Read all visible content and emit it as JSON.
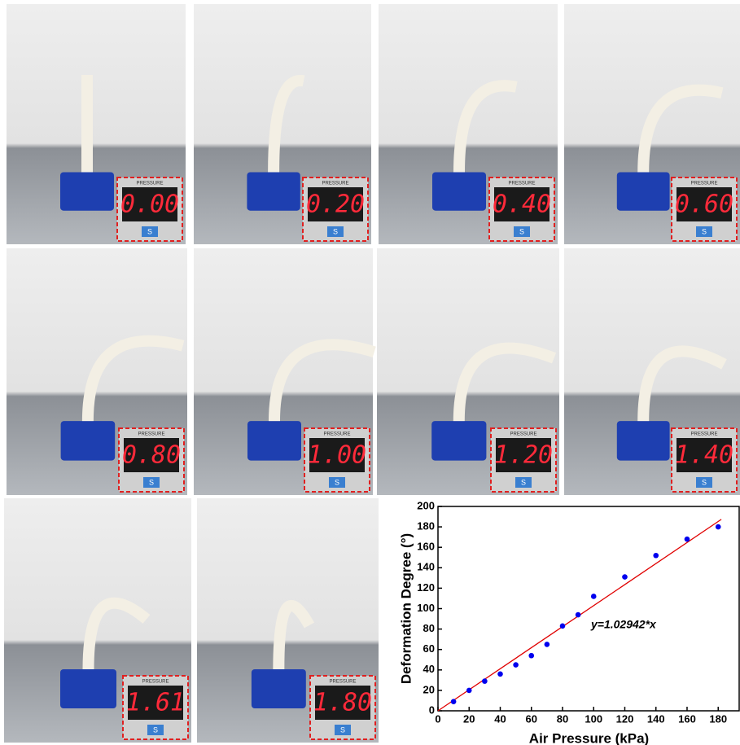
{
  "photos": {
    "readings": [
      "0.00",
      "0.20",
      "0.40",
      "0.60",
      "0.80",
      "1.00",
      "1.20",
      "1.40",
      "1.61",
      "1.80"
    ],
    "display_header": "PRESSURE",
    "button_label": "S"
  },
  "chart_data": {
    "type": "scatter",
    "x_label": "Air Pressure (kPa)",
    "y_label": "Deformation Degree (°)",
    "annotation": "y=1.02942*x",
    "series": [
      {
        "color": "#0000ee",
        "x": [
          10,
          20,
          30,
          40,
          50,
          60,
          70,
          80,
          90,
          100,
          120,
          140,
          160,
          180
        ],
        "values": [
          9,
          20,
          29,
          36,
          45,
          54,
          65,
          83,
          94,
          112,
          131,
          152,
          168,
          180
        ]
      }
    ],
    "fit_line": {
      "slope": 1.02942,
      "x_range": [
        0,
        182
      ],
      "color": "#e00000"
    },
    "xlim": [
      0,
      194
    ],
    "ylim": [
      0,
      200
    ],
    "xticks": [
      0,
      20,
      40,
      60,
      80,
      100,
      120,
      140,
      160,
      180
    ],
    "yticks": [
      0,
      20,
      40,
      60,
      80,
      100,
      120,
      140,
      160,
      180,
      200
    ]
  }
}
